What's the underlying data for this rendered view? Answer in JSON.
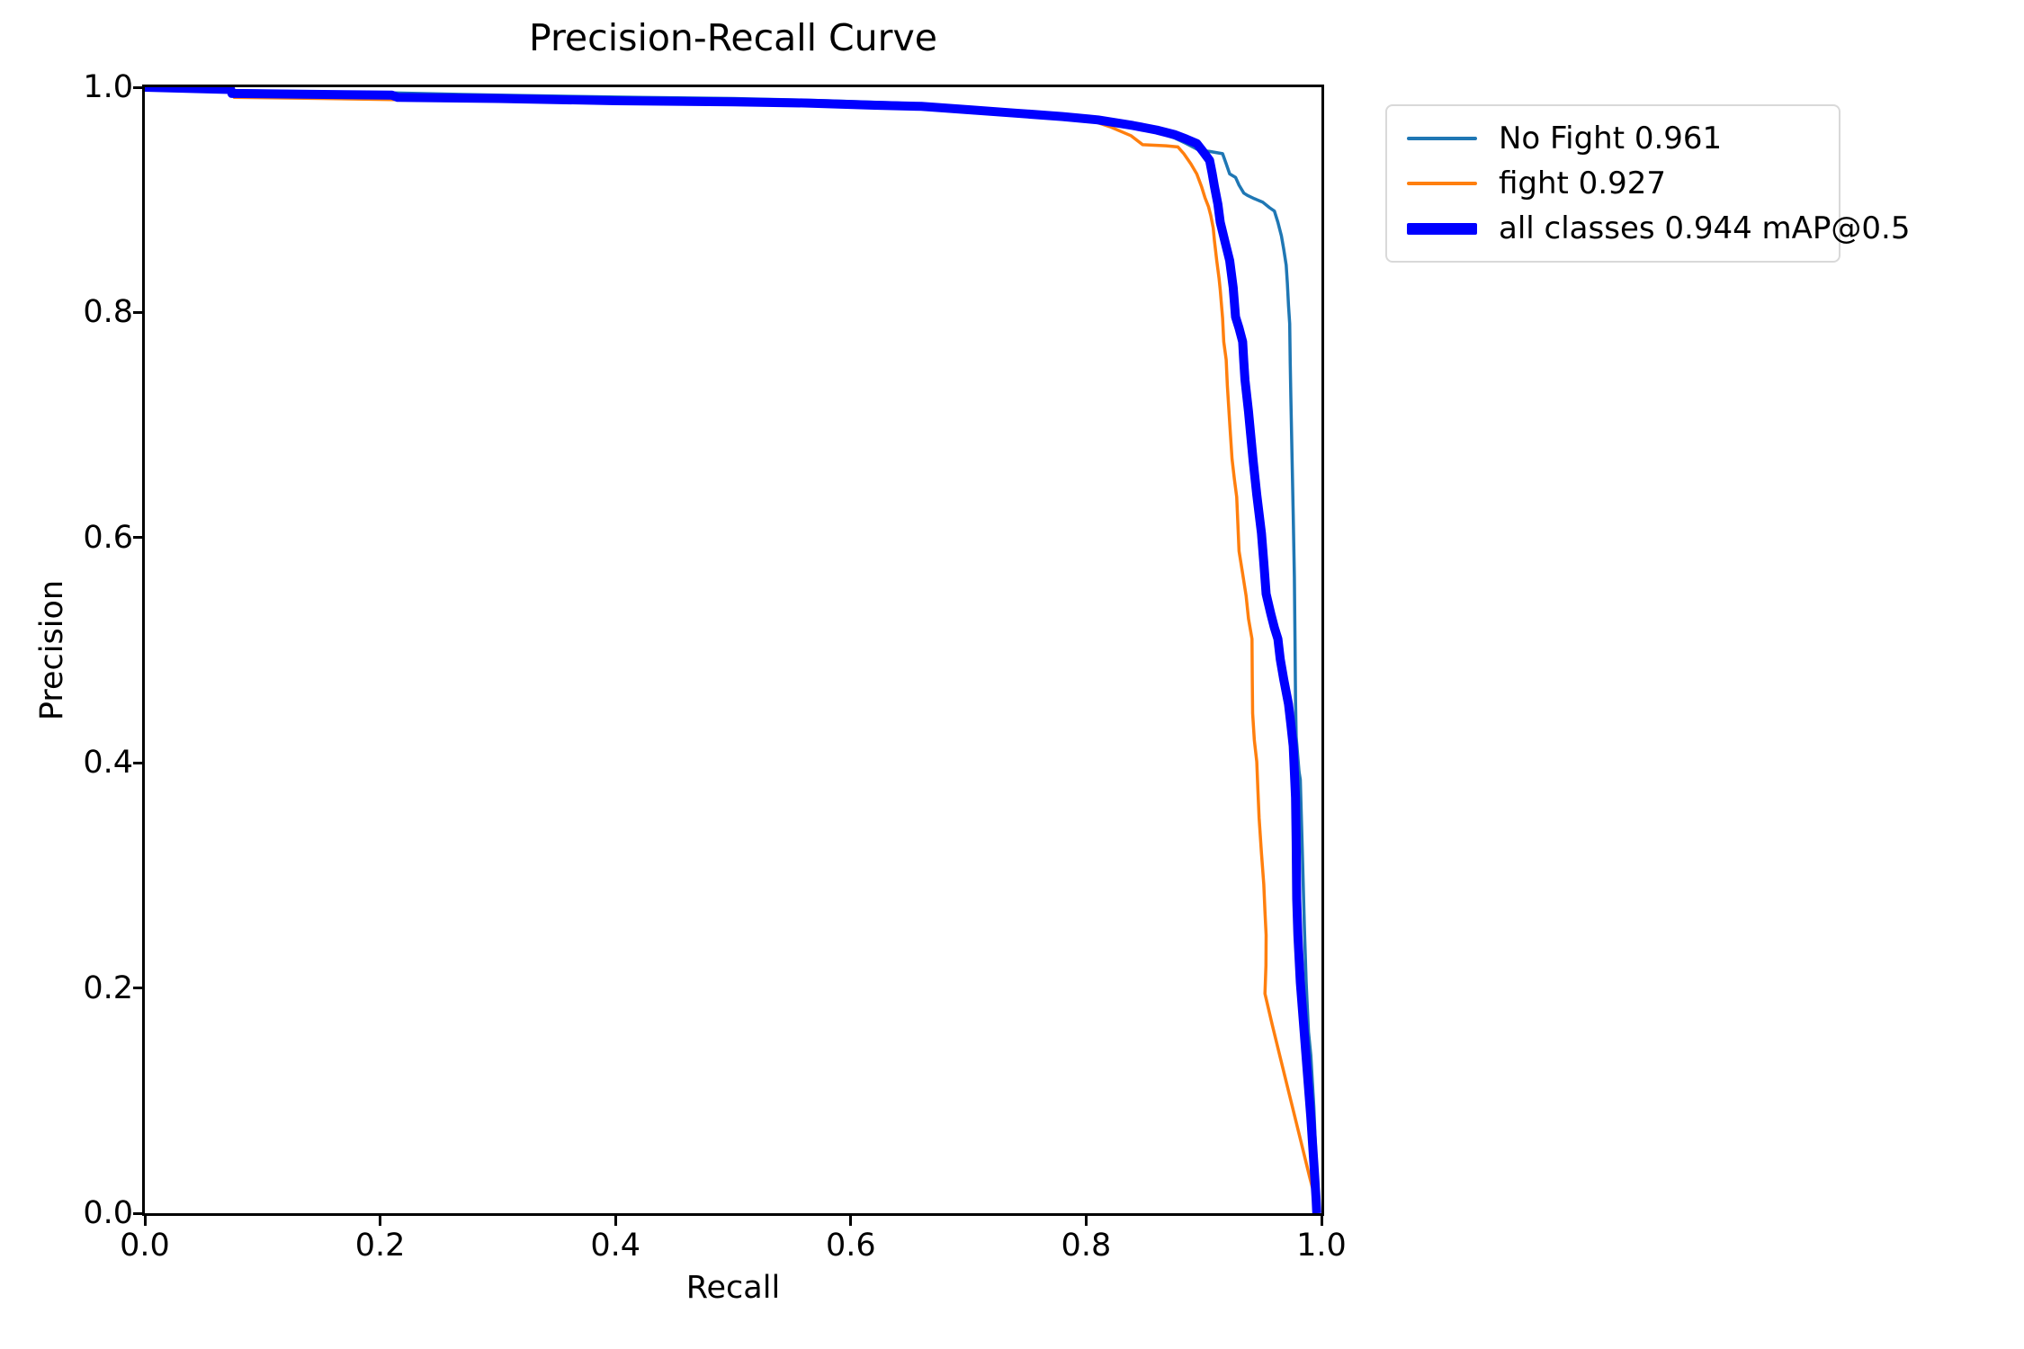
{
  "figure": {
    "background_color": "#ffffff",
    "spine_color": "#000000",
    "legend_border_color": "#d9d9d9"
  },
  "chart_data": {
    "type": "line",
    "title": "Precision-Recall Curve",
    "xlabel": "Recall",
    "ylabel": "Precision",
    "xlim": [
      0.0,
      1.0
    ],
    "ylim": [
      0.0,
      1.0
    ],
    "grid": false,
    "legend_position": "outside upper right",
    "x_ticks": {
      "values": [
        0.0,
        0.2,
        0.4,
        0.6,
        0.8,
        1.0
      ],
      "labels": [
        "0.0",
        "0.2",
        "0.4",
        "0.6",
        "0.8",
        "1.0"
      ]
    },
    "y_ticks": {
      "values": [
        0.0,
        0.2,
        0.4,
        0.6,
        0.8,
        1.0
      ],
      "labels": [
        "0.0",
        "0.2",
        "0.4",
        "0.6",
        "0.8",
        "1.0"
      ]
    },
    "series": [
      {
        "name": "No Fight",
        "ap": 0.961,
        "legend_label": "No Fight 0.961",
        "color": "#1f77b4",
        "line_width": "thin",
        "points": [
          [
            0,
            1
          ],
          [
            0.013,
            0.998
          ],
          [
            0.076,
            0.997
          ],
          [
            0.21,
            0.995
          ],
          [
            0.3,
            0.993
          ],
          [
            0.42,
            0.991
          ],
          [
            0.5,
            0.99
          ],
          [
            0.58,
            0.988
          ],
          [
            0.64,
            0.986
          ],
          [
            0.7,
            0.982
          ],
          [
            0.74,
            0.979
          ],
          [
            0.78,
            0.975
          ],
          [
            0.81,
            0.971
          ],
          [
            0.84,
            0.966
          ],
          [
            0.86,
            0.96
          ],
          [
            0.875,
            0.955
          ],
          [
            0.885,
            0.95
          ],
          [
            0.896,
            0.944
          ],
          [
            0.905,
            0.943
          ],
          [
            0.916,
            0.941
          ],
          [
            0.919,
            0.932
          ],
          [
            0.922,
            0.923
          ],
          [
            0.927,
            0.92
          ],
          [
            0.93,
            0.913
          ],
          [
            0.934,
            0.906
          ],
          [
            0.937,
            0.904
          ],
          [
            0.943,
            0.901
          ],
          [
            0.95,
            0.898
          ],
          [
            0.956,
            0.893
          ],
          [
            0.96,
            0.89
          ],
          [
            0.963,
            0.88
          ],
          [
            0.966,
            0.868
          ],
          [
            0.968,
            0.856
          ],
          [
            0.97,
            0.842
          ],
          [
            0.971,
            0.826
          ],
          [
            0.972,
            0.806
          ],
          [
            0.973,
            0.79
          ],
          [
            0.9735,
            0.755
          ],
          [
            0.974,
            0.724
          ],
          [
            0.975,
            0.672
          ],
          [
            0.976,
            0.621
          ],
          [
            0.977,
            0.565
          ],
          [
            0.9775,
            0.51
          ],
          [
            0.978,
            0.455
          ],
          [
            0.9785,
            0.423
          ],
          [
            0.981,
            0.392
          ],
          [
            0.982,
            0.385
          ],
          [
            0.983,
            0.348
          ],
          [
            0.984,
            0.311
          ],
          [
            0.9855,
            0.255
          ],
          [
            0.987,
            0.205
          ],
          [
            0.989,
            0.161
          ],
          [
            0.991,
            0.14
          ],
          [
            0.9935,
            0.095
          ],
          [
            0.9955,
            0.045
          ],
          [
            0.9965,
            0.012
          ],
          [
            0.997,
            0
          ]
        ]
      },
      {
        "name": "fight",
        "ap": 0.927,
        "legend_label": "fight 0.927",
        "color": "#ff7f0e",
        "line_width": "thin",
        "points": [
          [
            0,
            1
          ],
          [
            0.05,
            0.999
          ],
          [
            0.075,
            0.998
          ],
          [
            0.076,
            0.991
          ],
          [
            0.15,
            0.99
          ],
          [
            0.21,
            0.989
          ],
          [
            0.3,
            0.988
          ],
          [
            0.4,
            0.987
          ],
          [
            0.5,
            0.986
          ],
          [
            0.6,
            0.985
          ],
          [
            0.66,
            0.984
          ],
          [
            0.7,
            0.982
          ],
          [
            0.74,
            0.979
          ],
          [
            0.78,
            0.975
          ],
          [
            0.8,
            0.972
          ],
          [
            0.82,
            0.965
          ],
          [
            0.838,
            0.957
          ],
          [
            0.848,
            0.949
          ],
          [
            0.868,
            0.948
          ],
          [
            0.878,
            0.947
          ],
          [
            0.883,
            0.941
          ],
          [
            0.889,
            0.932
          ],
          [
            0.894,
            0.923
          ],
          [
            0.898,
            0.912
          ],
          [
            0.901,
            0.902
          ],
          [
            0.904,
            0.894
          ],
          [
            0.906,
            0.886
          ],
          [
            0.908,
            0.875
          ],
          [
            0.909,
            0.864
          ],
          [
            0.911,
            0.846
          ],
          [
            0.913,
            0.83
          ],
          [
            0.914,
            0.82
          ],
          [
            0.916,
            0.795
          ],
          [
            0.917,
            0.774
          ],
          [
            0.919,
            0.758
          ],
          [
            0.92,
            0.735
          ],
          [
            0.922,
            0.702
          ],
          [
            0.924,
            0.67
          ],
          [
            0.926,
            0.652
          ],
          [
            0.928,
            0.636
          ],
          [
            0.929,
            0.612
          ],
          [
            0.93,
            0.588
          ],
          [
            0.933,
            0.568
          ],
          [
            0.936,
            0.548
          ],
          [
            0.938,
            0.528
          ],
          [
            0.941,
            0.51
          ],
          [
            0.9412,
            0.475
          ],
          [
            0.9415,
            0.444
          ],
          [
            0.943,
            0.42
          ],
          [
            0.945,
            0.401
          ],
          [
            0.946,
            0.375
          ],
          [
            0.947,
            0.351
          ],
          [
            0.949,
            0.32
          ],
          [
            0.951,
            0.292
          ],
          [
            0.952,
            0.268
          ],
          [
            0.953,
            0.247
          ],
          [
            0.9528,
            0.22
          ],
          [
            0.952,
            0.195
          ],
          [
            0.958,
            0.168
          ],
          [
            0.966,
            0.134
          ],
          [
            0.974,
            0.1
          ],
          [
            0.982,
            0.066
          ],
          [
            0.99,
            0.032
          ],
          [
            0.996,
            0.008
          ],
          [
            0.997,
            0
          ]
        ]
      },
      {
        "name": "all classes",
        "ap": 0.944,
        "map_label": "mAP@0.5",
        "legend_label": "all classes 0.944 mAP@0.5",
        "color": "#0000ff",
        "line_width": "thick",
        "points": [
          [
            0,
            1
          ],
          [
            0.073,
            0.998
          ],
          [
            0.074,
            0.9945
          ],
          [
            0.21,
            0.993
          ],
          [
            0.215,
            0.991
          ],
          [
            0.3,
            0.99
          ],
          [
            0.4,
            0.988
          ],
          [
            0.5,
            0.987
          ],
          [
            0.56,
            0.986
          ],
          [
            0.62,
            0.984
          ],
          [
            0.66,
            0.983
          ],
          [
            0.7,
            0.98
          ],
          [
            0.74,
            0.977
          ],
          [
            0.78,
            0.974
          ],
          [
            0.81,
            0.971
          ],
          [
            0.84,
            0.966
          ],
          [
            0.86,
            0.962
          ],
          [
            0.875,
            0.958
          ],
          [
            0.885,
            0.954
          ],
          [
            0.894,
            0.95
          ],
          [
            0.9,
            0.942
          ],
          [
            0.905,
            0.935
          ],
          [
            0.907,
            0.924
          ],
          [
            0.909,
            0.912
          ],
          [
            0.912,
            0.896
          ],
          [
            0.914,
            0.88
          ],
          [
            0.918,
            0.863
          ],
          [
            0.922,
            0.846
          ],
          [
            0.925,
            0.822
          ],
          [
            0.927,
            0.796
          ],
          [
            0.93,
            0.786
          ],
          [
            0.933,
            0.774
          ],
          [
            0.934,
            0.756
          ],
          [
            0.935,
            0.74
          ],
          [
            0.938,
            0.712
          ],
          [
            0.94,
            0.69
          ],
          [
            0.942,
            0.668
          ],
          [
            0.945,
            0.638
          ],
          [
            0.949,
            0.604
          ],
          [
            0.951,
            0.578
          ],
          [
            0.953,
            0.55
          ],
          [
            0.957,
            0.532
          ],
          [
            0.96,
            0.52
          ],
          [
            0.963,
            0.51
          ],
          [
            0.965,
            0.492
          ],
          [
            0.968,
            0.474
          ],
          [
            0.972,
            0.452
          ],
          [
            0.974,
            0.434
          ],
          [
            0.976,
            0.415
          ],
          [
            0.977,
            0.392
          ],
          [
            0.978,
            0.369
          ],
          [
            0.9785,
            0.33
          ],
          [
            0.979,
            0.279
          ],
          [
            0.98,
            0.247
          ],
          [
            0.982,
            0.205
          ],
          [
            0.985,
            0.165
          ],
          [
            0.988,
            0.125
          ],
          [
            0.991,
            0.085
          ],
          [
            0.9935,
            0.045
          ],
          [
            0.9955,
            0.012
          ],
          [
            0.996,
            0
          ]
        ]
      }
    ]
  }
}
